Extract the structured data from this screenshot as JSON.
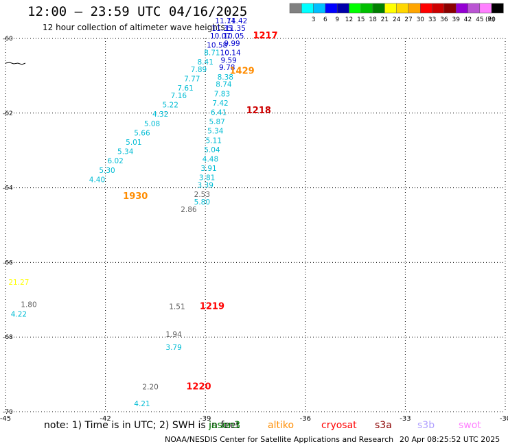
{
  "header": {
    "title": "12:00 — 23:59 UTC 04/16/2025",
    "subtitle": "12 hour collection of altimeter wave heights"
  },
  "colorbar": {
    "unit_label": "(ft)",
    "bins": [
      {
        "label": "",
        "color": "#808080"
      },
      {
        "label": "3",
        "color": "#00ffff"
      },
      {
        "label": "6",
        "color": "#00bfff"
      },
      {
        "label": "9",
        "color": "#0000ff"
      },
      {
        "label": "12",
        "color": "#0000aa"
      },
      {
        "label": "15",
        "color": "#00ff00"
      },
      {
        "label": "18",
        "color": "#00c000"
      },
      {
        "label": "21",
        "color": "#008000"
      },
      {
        "label": "24",
        "color": "#ffff00"
      },
      {
        "label": "27",
        "color": "#ffd700"
      },
      {
        "label": "30",
        "color": "#ffa500"
      },
      {
        "label": "33",
        "color": "#ff0000"
      },
      {
        "label": "36",
        "color": "#cc0000"
      },
      {
        "label": "39",
        "color": "#8b0000"
      },
      {
        "label": "42",
        "color": "#9400d3"
      },
      {
        "label": "45",
        "color": "#ba55d3"
      },
      {
        "label": "70",
        "color": "#ff80ff"
      },
      {
        "label": "",
        "color": "#000000"
      }
    ]
  },
  "footer": {
    "note": "note:  1) Time is in UTC; 2) SWH is in feet",
    "credit": "NOAA/NESDIS Center for Satellite Applications and Research",
    "generated": "20 Apr 08:25:52 UTC 2025",
    "missions": [
      {
        "name": "jason3",
        "color": "#008000"
      },
      {
        "name": "altiko",
        "color": "#ff8c00"
      },
      {
        "name": "cryosat",
        "color": "#ff0000"
      },
      {
        "name": "s3a",
        "color": "#8b0000"
      },
      {
        "name": "s3b",
        "color": "#b0a0ff"
      },
      {
        "name": "swot",
        "color": "#ff80ff"
      }
    ]
  },
  "chart_data": {
    "type": "scatter",
    "title": "12:00 — 23:59 UTC 04/16/2025",
    "subtitle": "12 hour collection of altimeter wave heights",
    "xlim": [
      -45,
      -30
    ],
    "ylim": [
      -70,
      -60
    ],
    "x_ticks": [
      -45,
      -42,
      -39,
      -36,
      -33,
      -30
    ],
    "y_ticks": [
      -60,
      -62,
      -64,
      -66,
      -68,
      -70
    ],
    "grid": true,
    "points": [
      {
        "x": -39.5,
        "y": -64.65,
        "value": "2.86",
        "color": "#606060"
      },
      {
        "x": -39.1,
        "y": -64.25,
        "value": "2.53",
        "color": "#606060"
      },
      {
        "x": -39.1,
        "y": -64.45,
        "value": "5.80",
        "color": "#00bcd4"
      },
      {
        "x": -39.0,
        "y": -64.0,
        "value": "3.39",
        "color": "#00bcd4"
      },
      {
        "x": -38.95,
        "y": -63.8,
        "value": "3.81",
        "color": "#00bcd4"
      },
      {
        "x": -38.9,
        "y": -63.55,
        "value": "3.91",
        "color": "#00bcd4"
      },
      {
        "x": -38.85,
        "y": -63.3,
        "value": "4.48",
        "color": "#00bcd4"
      },
      {
        "x": -38.8,
        "y": -63.05,
        "value": "5.04",
        "color": "#00bcd4"
      },
      {
        "x": -38.75,
        "y": -62.8,
        "value": "5.11",
        "color": "#00bcd4"
      },
      {
        "x": -38.7,
        "y": -62.55,
        "value": "5.34",
        "color": "#00bcd4"
      },
      {
        "x": -38.65,
        "y": -62.3,
        "value": "5.87",
        "color": "#00bcd4"
      },
      {
        "x": -38.6,
        "y": -62.05,
        "value": "6.41",
        "color": "#00bcd4"
      },
      {
        "x": -38.55,
        "y": -61.8,
        "value": "7.42",
        "color": "#00bcd4"
      },
      {
        "x": -38.5,
        "y": -61.55,
        "value": "7.83",
        "color": "#00bcd4"
      },
      {
        "x": -38.45,
        "y": -61.3,
        "value": "8.74",
        "color": "#00bcd4"
      },
      {
        "x": -38.4,
        "y": -61.1,
        "value": "8.38",
        "color": "#00bcd4"
      },
      {
        "x": -38.35,
        "y": -60.85,
        "value": "9.78",
        "color": "#0000cd"
      },
      {
        "x": -38.3,
        "y": -60.65,
        "value": "9.59",
        "color": "#0000cd"
      },
      {
        "x": -38.25,
        "y": -60.45,
        "value": "10.14",
        "color": "#0000cd"
      },
      {
        "x": -38.2,
        "y": -60.2,
        "value": "9.99",
        "color": "#0000cd"
      },
      {
        "x": -38.15,
        "y": -60.0,
        "value": "10.05",
        "color": "#0000cd"
      },
      {
        "x": -38.1,
        "y": -59.8,
        "value": "11.35",
        "color": "#0000cd"
      },
      {
        "x": -38.05,
        "y": -59.6,
        "value": "11.42",
        "color": "#0000cd"
      },
      {
        "x": -38.4,
        "y": -59.6,
        "value": "11.74",
        "color": "#0000cd"
      },
      {
        "x": -38.5,
        "y": -59.8,
        "value": "11.35",
        "color": "#0000cd"
      },
      {
        "x": -38.55,
        "y": -60.0,
        "value": "10.07",
        "color": "#0000cd"
      },
      {
        "x": -38.65,
        "y": -60.25,
        "value": "10.58",
        "color": "#0000cd"
      },
      {
        "x": -38.8,
        "y": -60.45,
        "value": "8.71",
        "color": "#00bcd4"
      },
      {
        "x": -39.0,
        "y": -60.7,
        "value": "8.41",
        "color": "#00bcd4"
      },
      {
        "x": -39.2,
        "y": -60.9,
        "value": "7.89",
        "color": "#00bcd4"
      },
      {
        "x": -39.4,
        "y": -61.15,
        "value": "7.77",
        "color": "#00bcd4"
      },
      {
        "x": -39.6,
        "y": -61.4,
        "value": "7.61",
        "color": "#00bcd4"
      },
      {
        "x": -39.8,
        "y": -61.6,
        "value": "7.16",
        "color": "#00bcd4"
      },
      {
        "x": -40.05,
        "y": -61.85,
        "value": "5.22",
        "color": "#00bcd4"
      },
      {
        "x": -40.35,
        "y": -62.1,
        "value": "4.32",
        "color": "#00bcd4"
      },
      {
        "x": -40.6,
        "y": -62.35,
        "value": "5.08",
        "color": "#00bcd4"
      },
      {
        "x": -40.9,
        "y": -62.6,
        "value": "5.66",
        "color": "#00bcd4"
      },
      {
        "x": -41.15,
        "y": -62.85,
        "value": "5.01",
        "color": "#00bcd4"
      },
      {
        "x": -41.4,
        "y": -63.1,
        "value": "5.34",
        "color": "#00bcd4"
      },
      {
        "x": -41.7,
        "y": -63.35,
        "value": "6.02",
        "color": "#00bcd4"
      },
      {
        "x": -41.95,
        "y": -63.6,
        "value": "5.30",
        "color": "#00bcd4"
      },
      {
        "x": -42.25,
        "y": -63.85,
        "value": "4.40",
        "color": "#00bcd4"
      },
      {
        "x": -44.6,
        "y": -66.6,
        "value": "21.27",
        "color": "#ffff00"
      },
      {
        "x": -44.3,
        "y": -67.2,
        "value": "1.80",
        "color": "#606060"
      },
      {
        "x": -44.6,
        "y": -67.45,
        "value": "4.22",
        "color": "#00bcd4"
      },
      {
        "x": -39.85,
        "y": -67.25,
        "value": "1.51",
        "color": "#606060"
      },
      {
        "x": -39.95,
        "y": -68.0,
        "value": "1.94",
        "color": "#606060"
      },
      {
        "x": -39.95,
        "y": -68.35,
        "value": "3.79",
        "color": "#00bcd4"
      },
      {
        "x": -40.65,
        "y": -69.4,
        "value": "2.20",
        "color": "#606060"
      },
      {
        "x": -40.9,
        "y": -69.85,
        "value": "4.21",
        "color": "#00bcd4"
      }
    ],
    "time_labels": [
      {
        "x": -37.2,
        "y": -60.0,
        "label": "1217",
        "color": "#ff8c00"
      },
      {
        "x": -37.2,
        "y": -60.0,
        "label": "1217",
        "color": "#ff0000"
      },
      {
        "x": -37.9,
        "y": -60.95,
        "label": "1429",
        "color": "#ff8c00"
      },
      {
        "x": -37.4,
        "y": -62.0,
        "label": "1218",
        "color": "#cc0000"
      },
      {
        "x": -41.1,
        "y": -64.3,
        "label": "1930",
        "color": "#ff8c00"
      },
      {
        "x": -38.8,
        "y": -67.25,
        "label": "1219",
        "color": "#ff0000"
      },
      {
        "x": -39.2,
        "y": -69.4,
        "label": "1220",
        "color": "#ff0000"
      }
    ]
  }
}
